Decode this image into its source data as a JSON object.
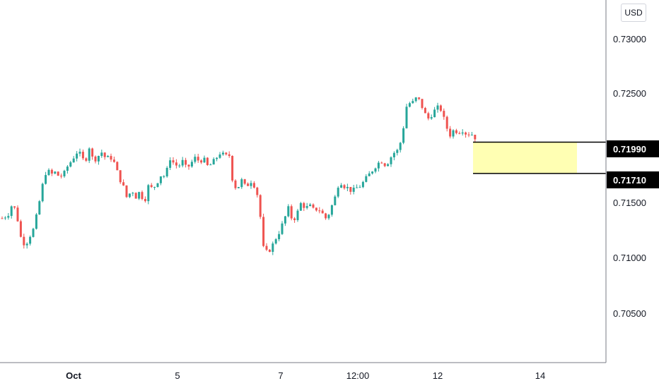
{
  "currency": "USD",
  "colors": {
    "up": "#26a69a",
    "down": "#ef5350",
    "zone_fill": "#ffffb3",
    "line": "#000000",
    "tag_bg": "#000000",
    "axis": "#131722",
    "axis_line": "#787b86"
  },
  "chart_data": {
    "type": "candlestick",
    "y_ticks": [
      "0.73000",
      "0.72500",
      "0.71500",
      "0.71000",
      "0.70500"
    ],
    "x_ticks": [
      "Oct",
      "5",
      "7",
      "12:00",
      "12",
      "14"
    ],
    "ylim": [
      0.7002,
      0.7326
    ],
    "price_tags": [
      "0.71990",
      "0.71710"
    ],
    "zone": {
      "top": 0.7199,
      "bottom": 0.7171
    },
    "price_path": [
      [
        0,
        0.713
      ],
      [
        6,
        0.7132
      ],
      [
        12,
        0.7135
      ],
      [
        18,
        0.7145
      ],
      [
        24,
        0.7133
      ],
      [
        30,
        0.7112
      ],
      [
        36,
        0.7107
      ],
      [
        42,
        0.7115
      ],
      [
        48,
        0.7122
      ],
      [
        54,
        0.714
      ],
      [
        60,
        0.716
      ],
      [
        66,
        0.7175
      ],
      [
        72,
        0.717
      ],
      [
        78,
        0.7172
      ],
      [
        84,
        0.7168
      ],
      [
        90,
        0.717
      ],
      [
        96,
        0.7178
      ],
      [
        102,
        0.7183
      ],
      [
        108,
        0.719
      ],
      [
        114,
        0.7188
      ],
      [
        120,
        0.718
      ],
      [
        126,
        0.7195
      ],
      [
        132,
        0.7182
      ],
      [
        138,
        0.7186
      ],
      [
        144,
        0.719
      ],
      [
        150,
        0.7184
      ],
      [
        156,
        0.7186
      ],
      [
        162,
        0.718
      ],
      [
        168,
        0.7168
      ],
      [
        174,
        0.716
      ],
      [
        180,
        0.7148
      ],
      [
        186,
        0.7157
      ],
      [
        192,
        0.715
      ],
      [
        198,
        0.7155
      ],
      [
        204,
        0.7145
      ],
      [
        210,
        0.716
      ],
      [
        216,
        0.7157
      ],
      [
        222,
        0.7163
      ],
      [
        228,
        0.717
      ],
      [
        234,
        0.7168
      ],
      [
        240,
        0.7185
      ],
      [
        246,
        0.718
      ],
      [
        252,
        0.7177
      ],
      [
        258,
        0.7182
      ],
      [
        264,
        0.7175
      ],
      [
        270,
        0.718
      ],
      [
        276,
        0.7185
      ],
      [
        282,
        0.7182
      ],
      [
        288,
        0.7184
      ],
      [
        294,
        0.7177
      ],
      [
        300,
        0.718
      ],
      [
        306,
        0.7185
      ],
      [
        312,
        0.719
      ],
      [
        318,
        0.7186
      ],
      [
        324,
        0.7188
      ],
      [
        330,
        0.716
      ],
      [
        336,
        0.7158
      ],
      [
        342,
        0.7165
      ],
      [
        348,
        0.7158
      ],
      [
        354,
        0.7165
      ],
      [
        360,
        0.716
      ],
      [
        366,
        0.7148
      ],
      [
        372,
        0.7105
      ],
      [
        378,
        0.71
      ],
      [
        384,
        0.7105
      ],
      [
        390,
        0.7113
      ],
      [
        396,
        0.712
      ],
      [
        402,
        0.713
      ],
      [
        408,
        0.714
      ],
      [
        414,
        0.7128
      ],
      [
        420,
        0.7135
      ],
      [
        426,
        0.7145
      ],
      [
        432,
        0.714
      ],
      [
        438,
        0.7142
      ],
      [
        444,
        0.7138
      ],
      [
        450,
        0.714
      ],
      [
        456,
        0.7135
      ],
      [
        462,
        0.713
      ],
      [
        468,
        0.714
      ],
      [
        474,
        0.715
      ],
      [
        480,
        0.7165
      ],
      [
        486,
        0.716
      ],
      [
        492,
        0.7158
      ],
      [
        498,
        0.7155
      ],
      [
        504,
        0.7158
      ],
      [
        510,
        0.716
      ],
      [
        516,
        0.7165
      ],
      [
        522,
        0.717
      ],
      [
        528,
        0.7175
      ],
      [
        534,
        0.718
      ],
      [
        540,
        0.7182
      ],
      [
        546,
        0.7178
      ],
      [
        552,
        0.7185
      ],
      [
        558,
        0.719
      ],
      [
        564,
        0.7192
      ],
      [
        570,
        0.721
      ],
      [
        576,
        0.7235
      ],
      [
        582,
        0.7233
      ],
      [
        588,
        0.7238
      ],
      [
        594,
        0.7236
      ],
      [
        600,
        0.7225
      ],
      [
        606,
        0.722
      ],
      [
        612,
        0.7225
      ],
      [
        618,
        0.723
      ],
      [
        624,
        0.7228
      ],
      [
        630,
        0.7215
      ],
      [
        636,
        0.7205
      ],
      [
        642,
        0.721
      ],
      [
        648,
        0.7208
      ],
      [
        654,
        0.721
      ],
      [
        660,
        0.7206
      ],
      [
        666,
        0.7207
      ],
      [
        672,
        0.7203
      ],
      [
        676,
        0.7202
      ]
    ]
  }
}
